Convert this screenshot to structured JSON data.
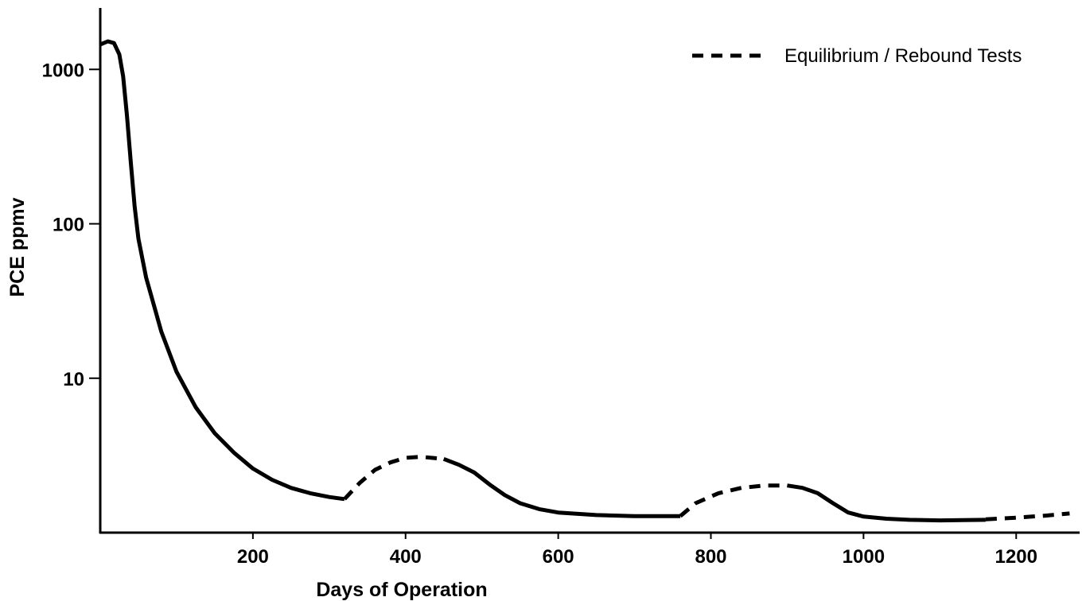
{
  "chart_data": {
    "type": "line",
    "title": "",
    "xlabel": "Days of Operation",
    "ylabel": "PCE ppmv",
    "xlim": [
      0,
      1280
    ],
    "ylim": [
      1,
      2500
    ],
    "yscale": "log",
    "x_ticks": [
      200,
      400,
      600,
      800,
      1000,
      1200
    ],
    "y_ticks": [
      10,
      100,
      1000
    ],
    "grid": false,
    "legend": {
      "placement": "top-right",
      "entries": [
        {
          "label": "Equilibrium / Rebound Tests",
          "style": "dashed",
          "color": "#000000"
        }
      ]
    },
    "series": [
      {
        "style": "solid",
        "color": "#000000",
        "points": [
          [
            0,
            1450
          ],
          [
            10,
            1520
          ],
          [
            18,
            1480
          ],
          [
            25,
            1250
          ],
          [
            30,
            900
          ],
          [
            35,
            500
          ],
          [
            40,
            250
          ],
          [
            45,
            130
          ],
          [
            50,
            80
          ],
          [
            60,
            45
          ],
          [
            70,
            30
          ],
          [
            80,
            20
          ],
          [
            100,
            11
          ],
          [
            125,
            6.5
          ],
          [
            150,
            4.4
          ],
          [
            175,
            3.3
          ],
          [
            200,
            2.6
          ],
          [
            225,
            2.2
          ],
          [
            250,
            1.95
          ],
          [
            275,
            1.8
          ],
          [
            300,
            1.7
          ],
          [
            320,
            1.65
          ]
        ]
      },
      {
        "style": "dashed",
        "color": "#000000",
        "points": [
          [
            320,
            1.65
          ],
          [
            340,
            2.1
          ],
          [
            360,
            2.55
          ],
          [
            380,
            2.85
          ],
          [
            400,
            3.05
          ],
          [
            420,
            3.1
          ],
          [
            450,
            3.0
          ]
        ]
      },
      {
        "style": "solid",
        "color": "#000000",
        "points": [
          [
            450,
            3.0
          ],
          [
            470,
            2.75
          ],
          [
            490,
            2.45
          ],
          [
            510,
            2.05
          ],
          [
            530,
            1.75
          ],
          [
            550,
            1.55
          ],
          [
            575,
            1.42
          ],
          [
            600,
            1.35
          ],
          [
            650,
            1.3
          ],
          [
            700,
            1.28
          ],
          [
            760,
            1.28
          ]
        ]
      },
      {
        "style": "dashed",
        "color": "#000000",
        "points": [
          [
            760,
            1.28
          ],
          [
            780,
            1.55
          ],
          [
            810,
            1.8
          ],
          [
            840,
            1.95
          ],
          [
            870,
            2.02
          ],
          [
            900,
            2.02
          ]
        ]
      },
      {
        "style": "solid",
        "color": "#000000",
        "points": [
          [
            900,
            2.02
          ],
          [
            920,
            1.95
          ],
          [
            940,
            1.8
          ],
          [
            960,
            1.55
          ],
          [
            980,
            1.35
          ],
          [
            1000,
            1.27
          ],
          [
            1030,
            1.23
          ],
          [
            1060,
            1.21
          ],
          [
            1100,
            1.2
          ],
          [
            1160,
            1.21
          ]
        ]
      },
      {
        "style": "dashed",
        "color": "#000000",
        "points": [
          [
            1160,
            1.22
          ],
          [
            1200,
            1.25
          ],
          [
            1240,
            1.29
          ],
          [
            1270,
            1.33
          ]
        ]
      }
    ]
  }
}
